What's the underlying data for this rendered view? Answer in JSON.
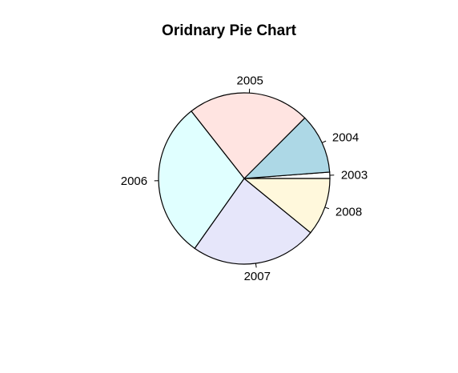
{
  "chart_data": {
    "type": "pie",
    "title": "Oridnary Pie Chart",
    "clockwise": false,
    "start_angle_deg": 0,
    "slices": [
      {
        "label": "2003",
        "value": 1.2,
        "color": "#FFFFFF"
      },
      {
        "label": "2004",
        "value": 11.3,
        "color": "#ADD8E6"
      },
      {
        "label": "2005",
        "value": 23.1,
        "color": "#FFE4E1"
      },
      {
        "label": "2006",
        "value": 29.6,
        "color": "#E0FFFF"
      },
      {
        "label": "2007",
        "value": 23.9,
        "color": "#E6E6FA"
      },
      {
        "label": "2008",
        "value": 10.9,
        "color": "#FFF8DC"
      }
    ],
    "border_color": "#000000"
  }
}
